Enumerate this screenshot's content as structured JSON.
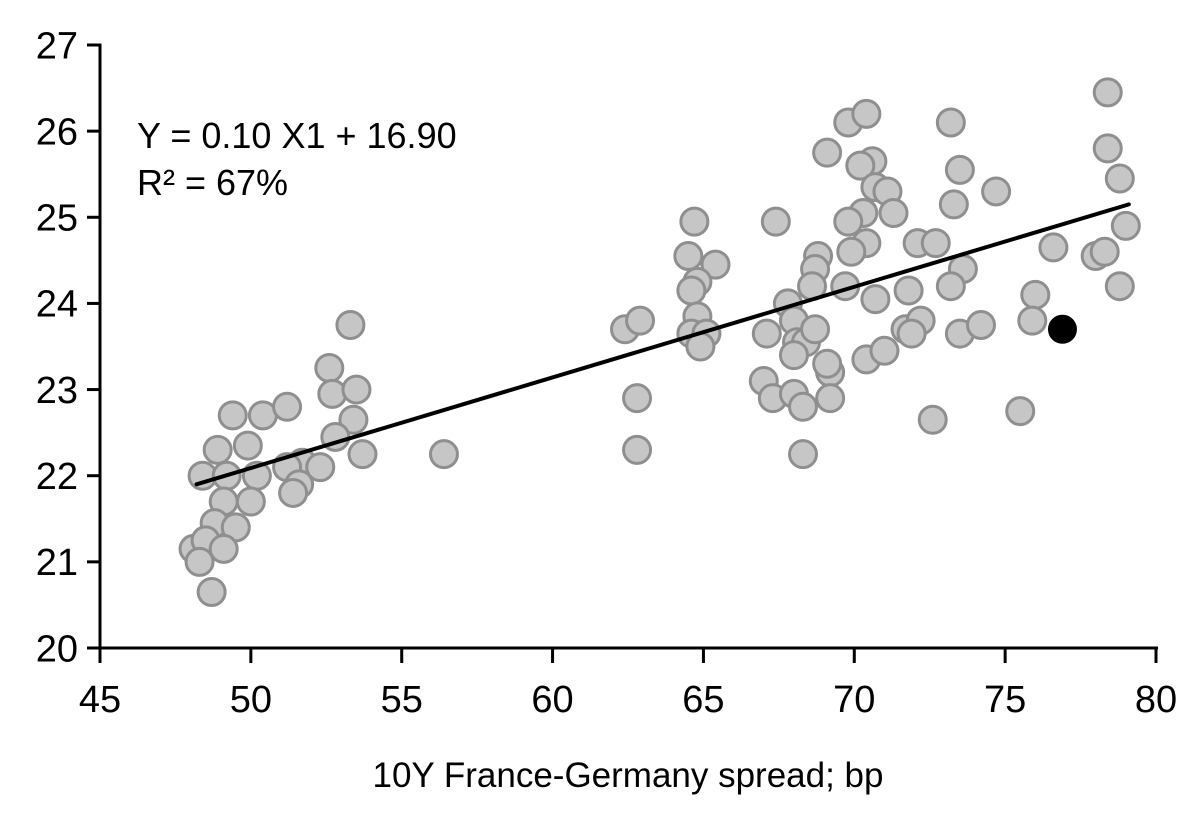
{
  "chart_data": {
    "type": "scatter",
    "title": "",
    "xlabel": "10Y France-Germany spread; bp",
    "ylabel": "",
    "xlim": [
      45,
      80
    ],
    "ylim": [
      20,
      27
    ],
    "x_ticks": [
      "45",
      "50",
      "55",
      "60",
      "65",
      "70",
      "75",
      "80"
    ],
    "x_tick_values": [
      45,
      50,
      55,
      60,
      65,
      70,
      75,
      80
    ],
    "y_ticks": [
      "20",
      "21",
      "22",
      "23",
      "24",
      "25",
      "26",
      "27"
    ],
    "y_tick_values": [
      20,
      21,
      22,
      23,
      24,
      25,
      26,
      27
    ],
    "grid": false,
    "legend": false,
    "annotation": {
      "line1": "Y = 0.10 X1 + 16.90",
      "line2": "R² = 67%"
    },
    "trend_line": {
      "x1": 48.2,
      "y1": 21.9,
      "x2": 79.1,
      "y2": 25.15,
      "color": "#000000",
      "width": 4
    },
    "series": [
      {
        "name": "observations",
        "marker": {
          "radius": 13.5,
          "fill": "#c6c6c6",
          "stroke": "#8f8f8f",
          "stroke_width": 3
        },
        "points": [
          [
            53.3,
            23.75
          ],
          [
            52.6,
            23.25
          ],
          [
            52.7,
            22.95
          ],
          [
            53.5,
            23.0
          ],
          [
            53.4,
            22.65
          ],
          [
            52.8,
            22.45
          ],
          [
            53.7,
            22.25
          ],
          [
            51.7,
            22.15
          ],
          [
            52.3,
            22.1
          ],
          [
            49.4,
            22.7
          ],
          [
            50.4,
            22.7
          ],
          [
            51.2,
            22.8
          ],
          [
            48.9,
            22.3
          ],
          [
            49.9,
            22.35
          ],
          [
            51.2,
            22.1
          ],
          [
            48.4,
            22.0
          ],
          [
            49.2,
            22.0
          ],
          [
            50.2,
            22.0
          ],
          [
            51.6,
            21.9
          ],
          [
            51.4,
            21.8
          ],
          [
            49.1,
            21.7
          ],
          [
            50.0,
            21.7
          ],
          [
            48.8,
            21.45
          ],
          [
            49.5,
            21.4
          ],
          [
            48.1,
            21.15
          ],
          [
            48.5,
            21.25
          ],
          [
            49.1,
            21.15
          ],
          [
            48.3,
            21.0
          ],
          [
            48.7,
            20.65
          ],
          [
            56.4,
            22.25
          ],
          [
            62.4,
            23.7
          ],
          [
            62.9,
            23.8
          ],
          [
            62.8,
            22.9
          ],
          [
            62.8,
            22.3
          ],
          [
            64.7,
            24.95
          ],
          [
            64.5,
            24.55
          ],
          [
            65.4,
            24.45
          ],
          [
            64.8,
            24.25
          ],
          [
            64.6,
            24.15
          ],
          [
            64.8,
            23.85
          ],
          [
            64.6,
            23.65
          ],
          [
            65.1,
            23.65
          ],
          [
            64.9,
            23.5
          ],
          [
            67.4,
            24.95
          ],
          [
            69.8,
            26.1
          ],
          [
            70.4,
            26.2
          ],
          [
            69.1,
            25.75
          ],
          [
            70.6,
            25.65
          ],
          [
            70.2,
            25.6
          ],
          [
            73.2,
            26.1
          ],
          [
            73.5,
            25.55
          ],
          [
            74.7,
            25.3
          ],
          [
            73.3,
            25.15
          ],
          [
            70.7,
            25.35
          ],
          [
            71.1,
            25.3
          ],
          [
            70.3,
            25.05
          ],
          [
            71.3,
            25.05
          ],
          [
            69.8,
            24.95
          ],
          [
            70.4,
            24.7
          ],
          [
            69.9,
            24.6
          ],
          [
            68.8,
            24.55
          ],
          [
            68.7,
            24.4
          ],
          [
            72.1,
            24.7
          ],
          [
            72.7,
            24.7
          ],
          [
            73.6,
            24.4
          ],
          [
            73.2,
            24.2
          ],
          [
            68.6,
            24.2
          ],
          [
            69.7,
            24.2
          ],
          [
            70.7,
            24.05
          ],
          [
            71.8,
            24.15
          ],
          [
            67.8,
            24.0
          ],
          [
            68.0,
            23.8
          ],
          [
            67.1,
            23.65
          ],
          [
            68.1,
            23.55
          ],
          [
            68.4,
            23.55
          ],
          [
            68.7,
            23.7
          ],
          [
            68.0,
            23.4
          ],
          [
            69.2,
            23.2
          ],
          [
            67.0,
            23.1
          ],
          [
            67.3,
            22.9
          ],
          [
            68.0,
            22.95
          ],
          [
            68.3,
            22.8
          ],
          [
            69.2,
            22.9
          ],
          [
            68.3,
            22.25
          ],
          [
            69.1,
            23.3
          ],
          [
            70.4,
            23.35
          ],
          [
            71.0,
            23.45
          ],
          [
            71.7,
            23.7
          ],
          [
            72.2,
            23.8
          ],
          [
            71.9,
            23.65
          ],
          [
            72.6,
            22.65
          ],
          [
            73.5,
            23.65
          ],
          [
            74.2,
            23.75
          ],
          [
            78.4,
            26.45
          ],
          [
            78.4,
            25.8
          ],
          [
            78.8,
            25.45
          ],
          [
            79.0,
            24.9
          ],
          [
            76.6,
            24.65
          ],
          [
            78.0,
            24.55
          ],
          [
            78.3,
            24.6
          ],
          [
            78.8,
            24.2
          ],
          [
            76.0,
            24.1
          ],
          [
            75.9,
            23.8
          ],
          [
            75.5,
            22.75
          ]
        ]
      },
      {
        "name": "latest-observation",
        "marker": {
          "radius": 14,
          "fill": "#000000",
          "stroke": "#000000",
          "stroke_width": 1
        },
        "points": [
          [
            76.9,
            23.7
          ]
        ]
      }
    ],
    "axis": {
      "color": "#000000",
      "line_width": 3,
      "tick_length": 13,
      "tick_font_size": 38
    },
    "background": "#ffffff"
  }
}
